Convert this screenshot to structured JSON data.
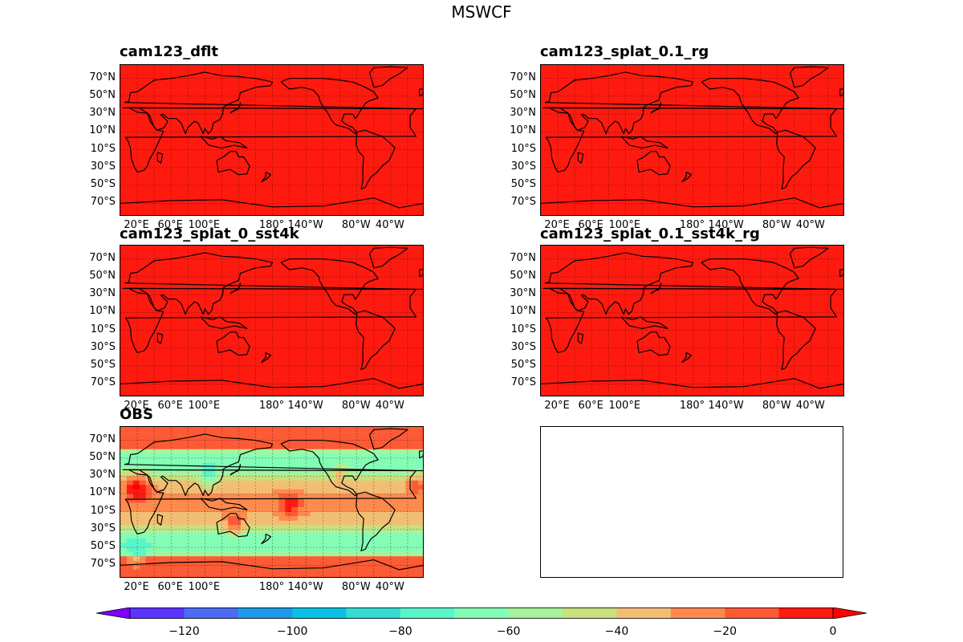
{
  "figure": {
    "title": "MSWCF"
  },
  "chart_data": [
    {
      "type": "heatmap",
      "title": "cam123_dflt",
      "field": "uniform",
      "uniform_value": -5,
      "lat_ticks": [
        "70°N",
        "50°N",
        "30°N",
        "10°N",
        "10°S",
        "30°S",
        "50°S",
        "70°S"
      ],
      "lon_ticks": [
        "20°E",
        "60°E",
        "100°E",
        "180°",
        "140°W",
        "80°W",
        "40°W"
      ],
      "grid": true
    },
    {
      "type": "heatmap",
      "title": "cam123_splat_0.1_rg",
      "field": "uniform",
      "uniform_value": -5,
      "lat_ticks": [
        "70°N",
        "50°N",
        "30°N",
        "10°N",
        "10°S",
        "30°S",
        "50°S",
        "70°S"
      ],
      "lon_ticks": [
        "20°E",
        "60°E",
        "100°E",
        "180°",
        "140°W",
        "80°W",
        "40°W"
      ],
      "grid": true
    },
    {
      "type": "heatmap",
      "title": "cam123_splat_0_sst4k",
      "field": "uniform",
      "uniform_value": -5,
      "lat_ticks": [
        "70°N",
        "50°N",
        "30°N",
        "10°N",
        "10°S",
        "30°S",
        "50°S",
        "70°S"
      ],
      "lon_ticks": [
        "20°E",
        "60°E",
        "100°E",
        "180°",
        "140°W",
        "80°W",
        "40°W"
      ],
      "grid": true
    },
    {
      "type": "heatmap",
      "title": "cam123_splat_0.1_sst4k_rg",
      "field": "uniform",
      "uniform_value": -5,
      "lat_ticks": [
        "70°N",
        "50°N",
        "30°N",
        "10°N",
        "10°S",
        "30°S",
        "50°S",
        "70°S"
      ],
      "lon_ticks": [
        "20°E",
        "60°E",
        "100°E",
        "180°",
        "140°W",
        "80°W",
        "40°W"
      ],
      "grid": true
    },
    {
      "type": "heatmap",
      "title": "OBS",
      "field": "observed",
      "lat_ticks": [
        "70°N",
        "50°N",
        "30°N",
        "10°N",
        "10°S",
        "30°S",
        "50°S",
        "70°S"
      ],
      "lon_ticks": [
        "20°E",
        "60°E",
        "100°E",
        "180°",
        "140°W",
        "80°W",
        "40°W"
      ],
      "grid": true
    },
    {
      "type": "colorbar",
      "ticks": [
        "−120",
        "−100",
        "−80",
        "−60",
        "−40",
        "−20",
        "0"
      ],
      "tick_values": [
        -120,
        -100,
        -80,
        -60,
        -40,
        -20,
        0
      ],
      "levels": [
        -130,
        -120,
        -110,
        -100,
        -90,
        -80,
        -70,
        -60,
        -50,
        -40,
        -30,
        -20,
        -10,
        0
      ],
      "colors": [
        "#7f00ff",
        "#5b34fd",
        "#4a6bf4",
        "#1f9ae9",
        "#0bc0e5",
        "#35dbd2",
        "#5af5c8",
        "#84fdb5",
        "#a7f29b",
        "#c9e07e",
        "#f2be74",
        "#fe8a4d",
        "#fd5a36",
        "#ff1a10",
        "#ff0000"
      ],
      "extend": "both"
    }
  ]
}
